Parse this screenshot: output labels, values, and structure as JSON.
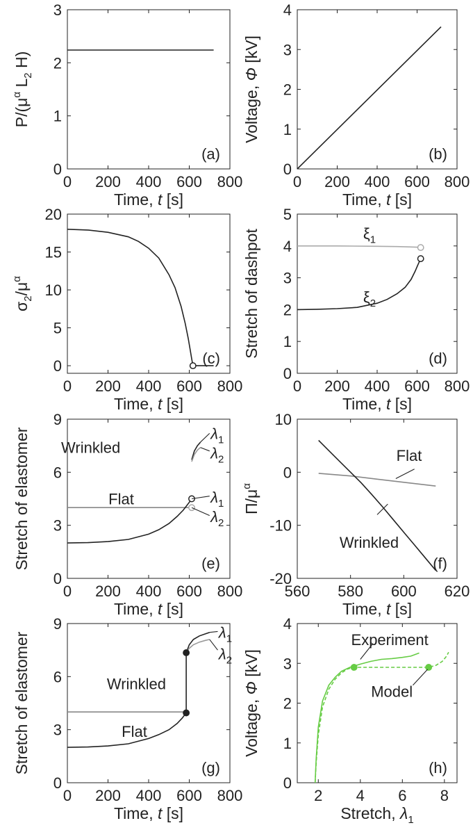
{
  "chart_data": [
    {
      "id": "a",
      "type": "line",
      "panel_label": "(a)",
      "xlabel": "Time, t [s]",
      "ylabel": "P/(μ^α L2 H)",
      "xlim": [
        0,
        800
      ],
      "ylim": [
        0,
        3
      ],
      "xticks": [
        0,
        200,
        400,
        600,
        800
      ],
      "yticks": [
        0,
        1,
        2,
        3
      ],
      "series": [
        {
          "color": "#222222",
          "x": [
            0,
            720
          ],
          "y": [
            2.24,
            2.24
          ]
        }
      ],
      "markers": [],
      "annotations": []
    },
    {
      "id": "b",
      "type": "line",
      "panel_label": "(b)",
      "xlabel": "Time, t [s]",
      "ylabel": "Voltage, Φ [kV]",
      "xlim": [
        0,
        800
      ],
      "ylim": [
        0,
        4
      ],
      "xticks": [
        0,
        200,
        400,
        600,
        800
      ],
      "yticks": [
        0,
        1,
        2,
        3,
        4
      ],
      "series": [
        {
          "color": "#222222",
          "x": [
            0,
            720
          ],
          "y": [
            0,
            3.57
          ]
        }
      ],
      "markers": [],
      "annotations": []
    },
    {
      "id": "c",
      "type": "line",
      "panel_label": "(c)",
      "xlabel": "Time, t [s]",
      "ylabel": "σ2/μ^α",
      "xlim": [
        0,
        800
      ],
      "ylim": [
        -1,
        20
      ],
      "xticks": [
        0,
        200,
        400,
        600,
        800
      ],
      "yticks": [
        0,
        5,
        10,
        15,
        20
      ],
      "series": [
        {
          "color": "#222222",
          "x": [
            0,
            100,
            200,
            300,
            350,
            400,
            450,
            500,
            530,
            560,
            580,
            595,
            605,
            612,
            618,
            720
          ],
          "y": [
            18.0,
            17.9,
            17.6,
            17.0,
            16.4,
            15.5,
            14.2,
            12.0,
            10.3,
            7.8,
            5.6,
            3.6,
            2.0,
            0.9,
            0,
            0
          ]
        }
      ],
      "markers": [
        {
          "x": 618,
          "y": 0,
          "style": "open",
          "color": "#222222"
        }
      ],
      "annotations": []
    },
    {
      "id": "d",
      "type": "line",
      "panel_label": "(d)",
      "xlabel": "Time, t [s]",
      "ylabel": "Stretch of dashpot",
      "xlim": [
        0,
        800
      ],
      "ylim": [
        0,
        5
      ],
      "xticks": [
        0,
        200,
        400,
        600,
        800
      ],
      "yticks": [
        0,
        1,
        2,
        3,
        4,
        5
      ],
      "series": [
        {
          "name": "ξ1",
          "color": "#aaaaaa",
          "x": [
            0,
            200,
            400,
            500,
            560,
            600,
            618
          ],
          "y": [
            4.0,
            4.0,
            3.99,
            3.98,
            3.97,
            3.96,
            3.95
          ]
        },
        {
          "name": "ξ2",
          "color": "#222222",
          "x": [
            0,
            100,
            200,
            300,
            400,
            450,
            500,
            540,
            570,
            590,
            605,
            618
          ],
          "y": [
            2.0,
            2.01,
            2.03,
            2.07,
            2.2,
            2.32,
            2.5,
            2.7,
            2.95,
            3.2,
            3.42,
            3.6
          ]
        }
      ],
      "markers": [
        {
          "x": 618,
          "y": 3.95,
          "style": "open",
          "color": "#aaaaaa"
        },
        {
          "x": 618,
          "y": 3.6,
          "style": "open",
          "color": "#222222"
        }
      ],
      "annotations": [
        {
          "text": "ξ1",
          "x": 330,
          "y": 4.4
        },
        {
          "text": "ξ2",
          "x": 330,
          "y": 2.4
        }
      ]
    },
    {
      "id": "e",
      "type": "line",
      "panel_label": "(e)",
      "xlabel": "Time, t [s]",
      "ylabel": "Stretch of elastomer",
      "xlim": [
        0,
        800
      ],
      "ylim": [
        0,
        9
      ],
      "xticks": [
        0,
        200,
        400,
        600,
        800
      ],
      "yticks": [
        0,
        3,
        6,
        9
      ],
      "series": [
        {
          "color": "#888888",
          "x": [
            0,
            612
          ],
          "y": [
            4.0,
            4.0
          ]
        },
        {
          "color": "#222222",
          "x": [
            0,
            100,
            200,
            300,
            400,
            450,
            500,
            540,
            570,
            590,
            605,
            612
          ],
          "y": [
            2.0,
            2.02,
            2.08,
            2.2,
            2.5,
            2.75,
            3.1,
            3.5,
            3.85,
            4.15,
            4.38,
            4.5
          ]
        },
        {
          "color": "#222222",
          "x": [
            612,
            625,
            640,
            655
          ],
          "y": [
            6.7,
            7.2,
            7.5,
            7.7
          ]
        },
        {
          "color": "#999999",
          "x": [
            612,
            625,
            640,
            655
          ],
          "y": [
            6.6,
            7.0,
            7.25,
            7.4
          ]
        }
      ],
      "markers": [
        {
          "x": 612,
          "y": 4.5,
          "style": "open",
          "color": "#222222"
        },
        {
          "x": 612,
          "y": 4.0,
          "style": "open",
          "color": "#aaaaaa"
        }
      ],
      "annotations": [
        {
          "text": "Wrinkled",
          "x": 115,
          "y": 7.4
        },
        {
          "text": "Flat",
          "x": 265,
          "y": 4.5
        },
        {
          "text": "λ1",
          "x": 705,
          "y": 8.2
        },
        {
          "text": "λ2",
          "x": 705,
          "y": 7.1
        },
        {
          "text": "λ1",
          "x": 705,
          "y": 4.6
        },
        {
          "text": "λ2",
          "x": 705,
          "y": 3.5
        }
      ]
    },
    {
      "id": "f",
      "type": "line",
      "panel_label": "(f)",
      "xlabel": "Time, t [s]",
      "ylabel": "Π/μ^α",
      "xlim": [
        560,
        620
      ],
      "ylim": [
        -20,
        10
      ],
      "xticks": [
        560,
        580,
        600,
        620
      ],
      "yticks": [
        -20,
        -10,
        0,
        10
      ],
      "series": [
        {
          "name": "Flat",
          "color": "#888888",
          "x": [
            568,
            580,
            590,
            600,
            612
          ],
          "y": [
            -0.2,
            -0.7,
            -1.3,
            -1.9,
            -2.6
          ]
        },
        {
          "name": "Wrinkled",
          "color": "#222222",
          "x": [
            568,
            572,
            576,
            580,
            584,
            588,
            592,
            596,
            600,
            604,
            608,
            612
          ],
          "y": [
            6.0,
            4.0,
            2.0,
            0.0,
            -2.0,
            -4.2,
            -6.5,
            -8.9,
            -11.3,
            -13.7,
            -16.1,
            -18.5
          ]
        }
      ],
      "markers": [],
      "annotations": [
        {
          "text": "Flat",
          "x": 602,
          "y": 3.2
        },
        {
          "text": "Wrinkled",
          "x": 587,
          "y": -13.2
        }
      ]
    },
    {
      "id": "g",
      "type": "line",
      "panel_label": "(g)",
      "xlabel": "Time, t [s]",
      "ylabel": "Stretch of elastomer",
      "xlim": [
        0,
        800
      ],
      "ylim": [
        0,
        9
      ],
      "xticks": [
        0,
        200,
        400,
        600,
        800
      ],
      "yticks": [
        0,
        3,
        6,
        9
      ],
      "series": [
        {
          "color": "#888888",
          "x": [
            0,
            585
          ],
          "y": [
            4.0,
            4.0
          ]
        },
        {
          "color": "#222222",
          "x": [
            0,
            100,
            200,
            300,
            400,
            450,
            500,
            540,
            565,
            585
          ],
          "y": [
            2.0,
            2.02,
            2.08,
            2.2,
            2.5,
            2.72,
            3.0,
            3.35,
            3.65,
            3.95
          ]
        },
        {
          "color": "#222222",
          "x": [
            585,
            585
          ],
          "y": [
            3.95,
            7.35
          ]
        },
        {
          "color": "#222222",
          "x": [
            585,
            600,
            620,
            650,
            680,
            700
          ],
          "y": [
            7.35,
            7.8,
            8.1,
            8.3,
            8.42,
            8.5
          ]
        },
        {
          "color": "#999999",
          "x": [
            585,
            600,
            620,
            650,
            680,
            700
          ],
          "y": [
            7.35,
            7.6,
            7.8,
            7.95,
            8.05,
            8.1
          ]
        }
      ],
      "markers": [
        {
          "x": 585,
          "y": 3.95,
          "style": "filled",
          "color": "#222222"
        },
        {
          "x": 585,
          "y": 7.35,
          "style": "filled",
          "color": "#222222"
        }
      ],
      "annotations": [
        {
          "text": "Wrinkled",
          "x": 340,
          "y": 5.6
        },
        {
          "text": "Flat",
          "x": 330,
          "y": 2.9
        },
        {
          "text": "λ1",
          "x": 745,
          "y": 8.5
        },
        {
          "text": "λ2",
          "x": 745,
          "y": 7.3
        }
      ]
    },
    {
      "id": "h",
      "type": "line",
      "panel_label": "(h)",
      "xlabel": "Stretch, λ1",
      "ylabel": "Voltage, Φ [kV]",
      "xlim": [
        1,
        8.6
      ],
      "ylim": [
        0,
        4
      ],
      "xticks": [
        2,
        4,
        6,
        8
      ],
      "yticks": [
        0,
        1,
        2,
        3,
        4
      ],
      "series": [
        {
          "name": "Experiment",
          "color": "#66cc44",
          "dashed": false,
          "x": [
            1.85,
            1.9,
            2.0,
            2.2,
            2.5,
            2.8,
            3.1,
            3.5,
            4.0,
            4.5,
            5.0,
            5.5,
            6.0,
            6.4,
            6.8
          ],
          "y": [
            0,
            0.6,
            1.4,
            2.05,
            2.45,
            2.65,
            2.8,
            2.9,
            2.98,
            3.05,
            3.1,
            3.12,
            3.15,
            3.18,
            3.26
          ]
        },
        {
          "name": "Model",
          "color": "#66cc44",
          "dashed": true,
          "x": [
            1.85,
            1.9,
            2.0,
            2.2,
            2.5,
            2.8,
            3.1,
            3.4,
            3.7,
            7.25,
            7.6,
            7.9,
            8.1,
            8.2
          ],
          "y": [
            0,
            0.5,
            1.2,
            1.9,
            2.35,
            2.6,
            2.76,
            2.86,
            2.9,
            2.9,
            2.95,
            3.05,
            3.18,
            3.28
          ]
        }
      ],
      "markers": [
        {
          "x": 3.7,
          "y": 2.9,
          "style": "filled",
          "color": "#66cc44"
        },
        {
          "x": 7.25,
          "y": 2.9,
          "style": "filled",
          "color": "#66cc44"
        }
      ],
      "annotations": [
        {
          "text": "Experiment",
          "x": 5.4,
          "y": 3.6
        },
        {
          "text": "Model",
          "x": 5.5,
          "y": 2.3
        }
      ]
    }
  ]
}
